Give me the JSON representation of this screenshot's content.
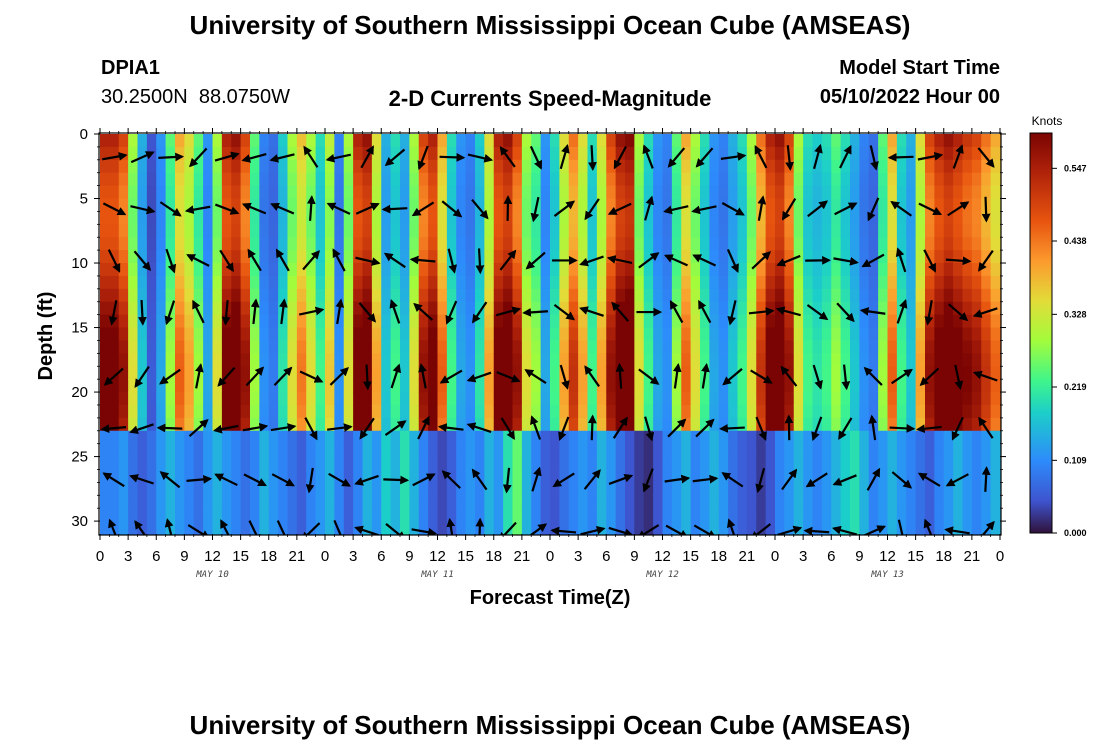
{
  "page": {
    "title": "University of Southern Mississippi Ocean Cube (AMSEAS)",
    "bottom_title": "University of Southern Mississippi Ocean Cube (AMSEAS)",
    "station_id": "DPIA1",
    "station_coords": "30.2500N  88.0750W",
    "plot_name": "2-D Currents Speed-Magnitude",
    "model_start_label": "Model Start Time",
    "model_start_value": "05/10/2022 Hour 00"
  },
  "chart_data": {
    "type": "heatmap",
    "title": "2-D Currents Speed-Magnitude",
    "xlabel": "Forecast Time(Z)",
    "ylabel": "Depth (ft)",
    "x_range": [
      0,
      96
    ],
    "y_range": [
      0,
      31
    ],
    "x_ticks": [
      "0",
      "3",
      "6",
      "9",
      "12",
      "15",
      "18",
      "21",
      "0",
      "3",
      "6",
      "9",
      "12",
      "15",
      "18",
      "21",
      "0",
      "3",
      "6",
      "9",
      "12",
      "15",
      "18",
      "21",
      "0",
      "3",
      "6",
      "9",
      "12",
      "15",
      "18",
      "21",
      "0"
    ],
    "y_ticks": [
      "0",
      "5",
      "10",
      "15",
      "20",
      "25",
      "30"
    ],
    "day_labels": [
      "MAY 10",
      "MAY 11",
      "MAY 12",
      "MAY 13"
    ],
    "colorbar": {
      "unit": "Knots",
      "labels": [
        "0.547",
        "0.438",
        "0.328",
        "0.219",
        "0.109",
        "0.000"
      ],
      "min": 0.0,
      "max": 0.6
    },
    "speed_by_hour_surface_layer": [
      0.55,
      0.55,
      0.5,
      0.3,
      0.15,
      0.05,
      0.12,
      0.25,
      0.4,
      0.35,
      0.25,
      0.12,
      0.3,
      0.55,
      0.58,
      0.5,
      0.25,
      0.1,
      0.08,
      0.18,
      0.3,
      0.38,
      0.3,
      0.2,
      0.32,
      0.1,
      0.3,
      0.55,
      0.58,
      0.35,
      0.15,
      0.2,
      0.15,
      0.3,
      0.5,
      0.55,
      0.4,
      0.2,
      0.12,
      0.1,
      0.18,
      0.35,
      0.55,
      0.58,
      0.5,
      0.3,
      0.25,
      0.12,
      0.2,
      0.35,
      0.45,
      0.35,
      0.2,
      0.35,
      0.5,
      0.58,
      0.6,
      0.3,
      0.2,
      0.12,
      0.1,
      0.25,
      0.4,
      0.3,
      0.2,
      0.12,
      0.1,
      0.15,
      0.2,
      0.3,
      0.45,
      0.55,
      0.58,
      0.5,
      0.3,
      0.2,
      0.18,
      0.2,
      0.25,
      0.2,
      0.15,
      0.1,
      0.08,
      0.25,
      0.4,
      0.2,
      0.15,
      0.35,
      0.5,
      0.55,
      0.58,
      0.55,
      0.52,
      0.5,
      0.45,
      0.4,
      0.35
    ],
    "speed_by_hour_bottom_layer": [
      0.1,
      0.1,
      0.12,
      0.08,
      0.06,
      0.08,
      0.12,
      0.15,
      0.12,
      0.1,
      0.08,
      0.12,
      0.15,
      0.12,
      0.1,
      0.08,
      0.1,
      0.15,
      0.12,
      0.1,
      0.08,
      0.06,
      0.1,
      0.12,
      0.15,
      0.1,
      0.06,
      0.1,
      0.15,
      0.12,
      0.18,
      0.15,
      0.2,
      0.15,
      0.1,
      0.06,
      0.04,
      0.06,
      0.1,
      0.12,
      0.1,
      0.15,
      0.12,
      0.2,
      0.25,
      0.15,
      0.1,
      0.06,
      0.05,
      0.08,
      0.1,
      0.12,
      0.1,
      0.15,
      0.12,
      0.08,
      0.05,
      0.03,
      0.02,
      0.05,
      0.1,
      0.12,
      0.15,
      0.1,
      0.12,
      0.15,
      0.12,
      0.08,
      0.06,
      0.05,
      0.03,
      0.05,
      0.1,
      0.12,
      0.15,
      0.12,
      0.1,
      0.12,
      0.15,
      0.18,
      0.2,
      0.15,
      0.1,
      0.12,
      0.15,
      0.12,
      0.1,
      0.08,
      0.06,
      0.1,
      0.12,
      0.15,
      0.12,
      0.1,
      0.12,
      0.15,
      0.18
    ],
    "current_direction_deg_by_hour": [
      80,
      250,
      60,
      45,
      30,
      200,
      45,
      190,
      100,
      160,
      200,
      30,
      350,
      10,
      20,
      150,
      200,
      160,
      130,
      40,
      220,
      180,
      160,
      190,
      90,
      0,
      350,
      200,
      180,
      200,
      20,
      10,
      70,
      330,
      20,
      190,
      200,
      110,
      140,
      190,
      20,
      200,
      30,
      180,
      170,
      200,
      350,
      60,
      40,
      200,
      210,
      180,
      20,
      190,
      190,
      170,
      40,
      300,
      240,
      20,
      160,
      330,
      30,
      140,
      200,
      10,
      340,
      150,
      160,
      210,
      160,
      190,
      30,
      20,
      340,
      210,
      130,
      140,
      200,
      160,
      170,
      320,
      30,
      70,
      40,
      200,
      20,
      190,
      180,
      200,
      110,
      150,
      200,
      210,
      170,
      180,
      100
    ]
  }
}
